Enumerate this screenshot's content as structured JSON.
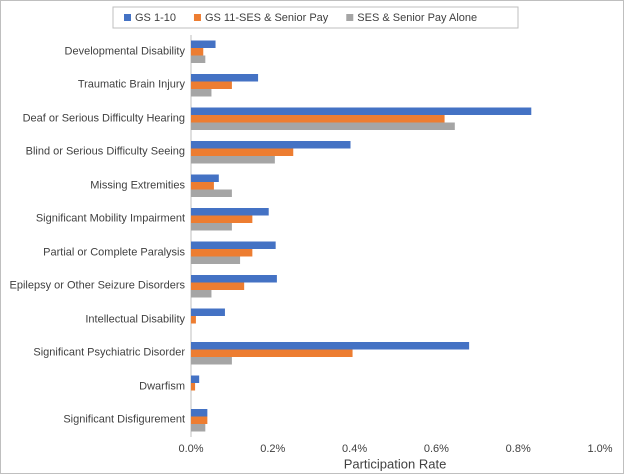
{
  "chart_data": {
    "type": "hbar",
    "x_label": "Participation Rate",
    "categories": [
      "Developmental Disability",
      "Traumatic Brain Injury",
      "Deaf or Serious Difficulty Hearing",
      "Blind or Serious Difficulty Seeing",
      "Missing Extremities",
      "Significant Mobility Impairment",
      "Partial or Complete Paralysis",
      "Epilepsy or Other Seizure Disorders",
      "Intellectual Disability",
      "Significant Psychiatric Disorder",
      "Dwarfism",
      "Significant Disfigurement"
    ],
    "series": [
      {
        "name": "GS 1-10",
        "color": "#4472c4",
        "values": [
          0.06,
          0.164,
          0.832,
          0.39,
          0.068,
          0.19,
          0.207,
          0.21,
          0.083,
          0.68,
          0.02,
          0.04
        ]
      },
      {
        "name": "GS 11-SES & Senior Pay",
        "color": "#ed7d31",
        "values": [
          0.03,
          0.1,
          0.62,
          0.25,
          0.056,
          0.15,
          0.15,
          0.13,
          0.012,
          0.395,
          0.01,
          0.04
        ]
      },
      {
        "name": "SES & Senior Pay Alone",
        "color": "#a5a5a5",
        "values": [
          0.035,
          0.05,
          0.645,
          0.205,
          0.1,
          0.1,
          0.12,
          0.05,
          0,
          0.1,
          0,
          0.035
        ]
      }
    ],
    "xlim": [
      0,
      1
    ],
    "xticks": [
      {
        "value": 0,
        "label": "0.0%"
      },
      {
        "value": 0.2,
        "label": "0.2%"
      },
      {
        "value": 0.4,
        "label": "0.4%"
      },
      {
        "value": 0.6,
        "label": "0.6%"
      },
      {
        "value": 0.8,
        "label": "0.8%"
      },
      {
        "value": 1,
        "label": "1.0%"
      }
    ],
    "legend": "top"
  }
}
